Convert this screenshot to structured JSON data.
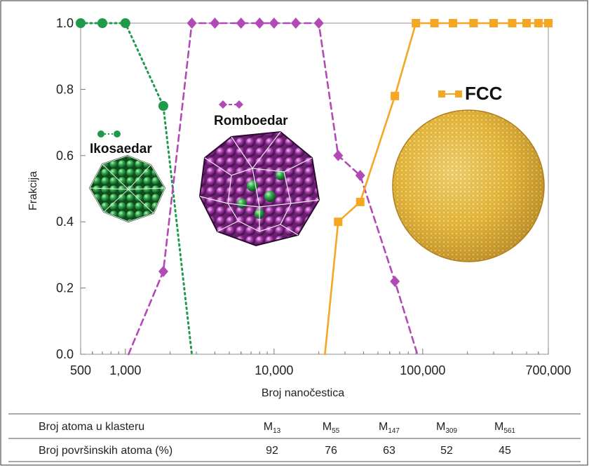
{
  "chart_data": {
    "type": "line",
    "xscale": "log",
    "xlim": [
      500,
      700000
    ],
    "ylim": [
      0,
      1.0
    ],
    "xlabel": "Broj nanočestica",
    "ylabel": "Frakcija",
    "xticks": [
      {
        "value": 500,
        "label": "500"
      },
      {
        "value": 1000,
        "label": "1,000"
      },
      {
        "value": 10000,
        "label": "10,000"
      },
      {
        "value": 100000,
        "label": "100,000"
      },
      {
        "value": 700000,
        "label": "700,000"
      }
    ],
    "yticks": [
      {
        "value": 0.0,
        "label": "0.0"
      },
      {
        "value": 0.2,
        "label": "0.2"
      },
      {
        "value": 0.4,
        "label": "0.4"
      },
      {
        "value": 0.6,
        "label": "0.6"
      },
      {
        "value": 0.8,
        "label": "0.8"
      },
      {
        "value": 1.0,
        "label": "1.0"
      }
    ],
    "series": [
      {
        "name": "Ikosaedar",
        "color": "#1f9a4a",
        "line": "dotted",
        "marker": "circle",
        "points": [
          [
            500,
            1.0
          ],
          [
            700,
            1.0
          ],
          [
            1000,
            1.0
          ],
          [
            1800,
            0.75
          ]
        ],
        "line_extension": [
          [
            1800,
            0.75
          ],
          [
            2800,
            0.0
          ]
        ]
      },
      {
        "name": "Romboedar",
        "color": "#b24ab6",
        "line": "dashed",
        "marker": "diamond",
        "points": [
          [
            1800,
            0.25
          ],
          [
            2800,
            1.0
          ],
          [
            4000,
            1.0
          ],
          [
            6000,
            1.0
          ],
          [
            8000,
            1.0
          ],
          [
            10000,
            1.0
          ],
          [
            14000,
            1.0
          ],
          [
            20000,
            1.0
          ],
          [
            27000,
            0.6
          ],
          [
            38000,
            0.54
          ],
          [
            65000,
            0.22
          ]
        ],
        "line_start": [
          [
            1050,
            0.0
          ],
          [
            1800,
            0.25
          ]
        ],
        "line_end": [
          [
            65000,
            0.22
          ],
          [
            92000,
            0.0
          ]
        ]
      },
      {
        "name": "FCC",
        "color": "#f5a623",
        "line": "solid",
        "marker": "square",
        "points": [
          [
            27000,
            0.4
          ],
          [
            38000,
            0.46
          ],
          [
            65000,
            0.78
          ],
          [
            90000,
            1.0
          ],
          [
            120000,
            1.0
          ],
          [
            160000,
            1.0
          ],
          [
            220000,
            1.0
          ],
          [
            300000,
            1.0
          ],
          [
            400000,
            1.0
          ],
          [
            500000,
            1.0
          ],
          [
            600000,
            1.0
          ],
          [
            700000,
            1.0
          ]
        ],
        "line_start": [
          [
            22000,
            0.0
          ],
          [
            27000,
            0.4
          ]
        ]
      }
    ],
    "table": {
      "rows": [
        {
          "label": "Broj atoma u klasteru",
          "cells": [
            {
              "main": "M",
              "sub": "13"
            },
            {
              "main": "M",
              "sub": "55"
            },
            {
              "main": "M",
              "sub": "147"
            },
            {
              "main": "M",
              "sub": "309"
            },
            {
              "main": "M",
              "sub": "561"
            }
          ]
        },
        {
          "label": "Broj površinskih atoma (%)",
          "cells": [
            {
              "main": "92",
              "sub": ""
            },
            {
              "main": "76",
              "sub": ""
            },
            {
              "main": "63",
              "sub": ""
            },
            {
              "main": "52",
              "sub": ""
            },
            {
              "main": "45",
              "sub": ""
            }
          ]
        }
      ]
    },
    "grid": false,
    "legend": "inline labels next to structure illustrations"
  },
  "illustrations": {
    "ikosaedar": {
      "label": "Ikosaedar",
      "color": "#2e9c3f"
    },
    "romboedar": {
      "label": "Romboedar",
      "color": "#a33aa8"
    },
    "fcc": {
      "label": "FCC",
      "color": "#e8b838"
    }
  }
}
